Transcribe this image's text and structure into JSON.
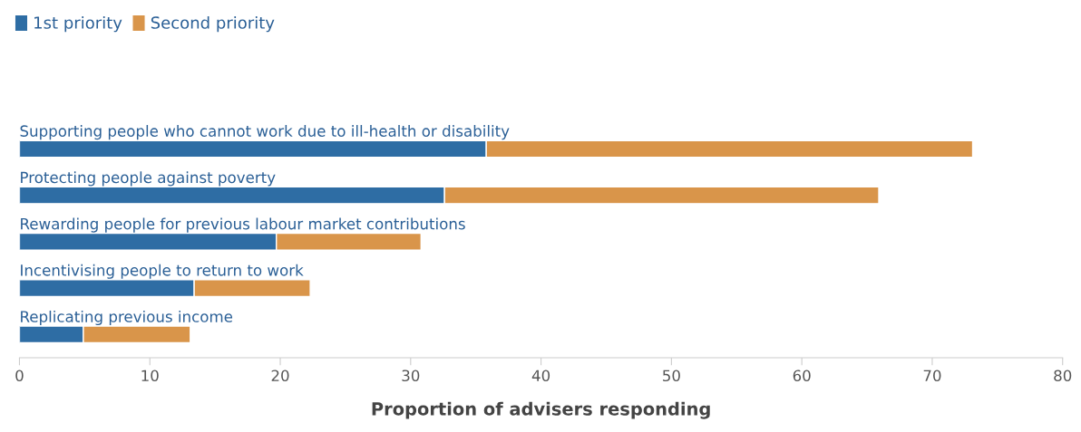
{
  "chart_data": {
    "type": "bar",
    "orientation": "horizontal",
    "stacked": true,
    "xlabel": "Proportion of advisers responding",
    "categories": [
      "Supporting people who cannot work due to ill-health or disability",
      "Protecting people against poverty",
      "Rewarding people for previous labour market contributions",
      "Incentivising people to return to work",
      "Replicating previous income"
    ],
    "series": [
      {
        "name": "1st priority",
        "color": "#2e6da4",
        "values": [
          35.8,
          32.6,
          19.7,
          13.4,
          4.9
        ]
      },
      {
        "name": "Second priority",
        "color": "#d9954a",
        "values": [
          37.3,
          33.3,
          11.1,
          8.9,
          8.2
        ]
      }
    ],
    "xlim": [
      0,
      80
    ],
    "xticks": [
      0,
      10,
      20,
      30,
      40,
      50,
      60,
      70,
      80
    ],
    "tick_labels": "x",
    "legend": "top left",
    "grid": false
  }
}
